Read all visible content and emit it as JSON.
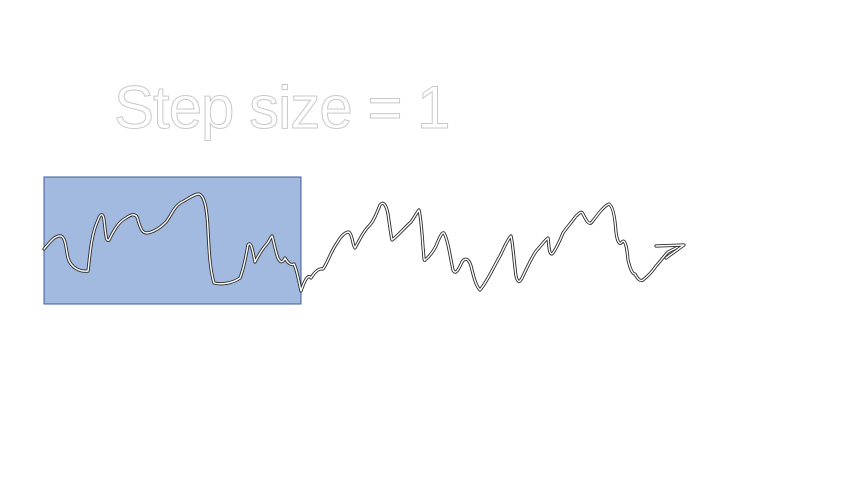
{
  "slide": {
    "title": "Step size = 1"
  },
  "colors": {
    "window_fill": "#a2b9e0",
    "window_border": "#3f5a97",
    "signal_line": "#2a2a2a",
    "title_outline": "#c9c9c9"
  },
  "icons": {
    "arrow_head": "arrow-right-icon"
  }
}
